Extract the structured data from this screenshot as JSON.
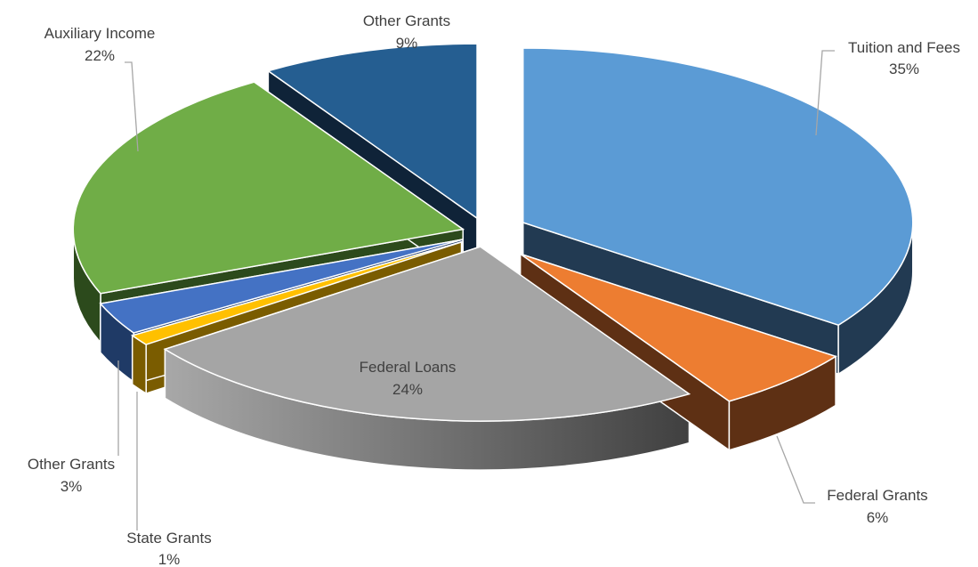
{
  "chart_data": {
    "type": "pie",
    "title": "",
    "exploded": true,
    "three_d": true,
    "slices": [
      {
        "label": "Tuition and Fees",
        "value": 35,
        "pct_label": "35%",
        "color": "#5b9bd5",
        "side_color": "#223a52"
      },
      {
        "label": "Federal Grants",
        "value": 6,
        "pct_label": "6%",
        "color": "#ed7d31",
        "side_color": "#5e3014"
      },
      {
        "label": "Federal Loans",
        "value": 24,
        "pct_label": "24%",
        "color": "#a5a5a5",
        "side_color": "#555555"
      },
      {
        "label": "State Grants",
        "value": 1,
        "pct_label": "1%",
        "color": "#ffc000",
        "side_color": "#7a5c00"
      },
      {
        "label": "Other Grants",
        "value": 3,
        "pct_label": "3%",
        "color": "#4472c4",
        "side_color": "#1f3a66"
      },
      {
        "label": "Auxiliary Income",
        "value": 22,
        "pct_label": "22%",
        "color": "#70ad47",
        "side_color": "#2c4a1c"
      },
      {
        "label": "Other Grants",
        "value": 9,
        "pct_label": "9%",
        "color": "#255e91",
        "side_color": "#0f2338"
      }
    ]
  }
}
